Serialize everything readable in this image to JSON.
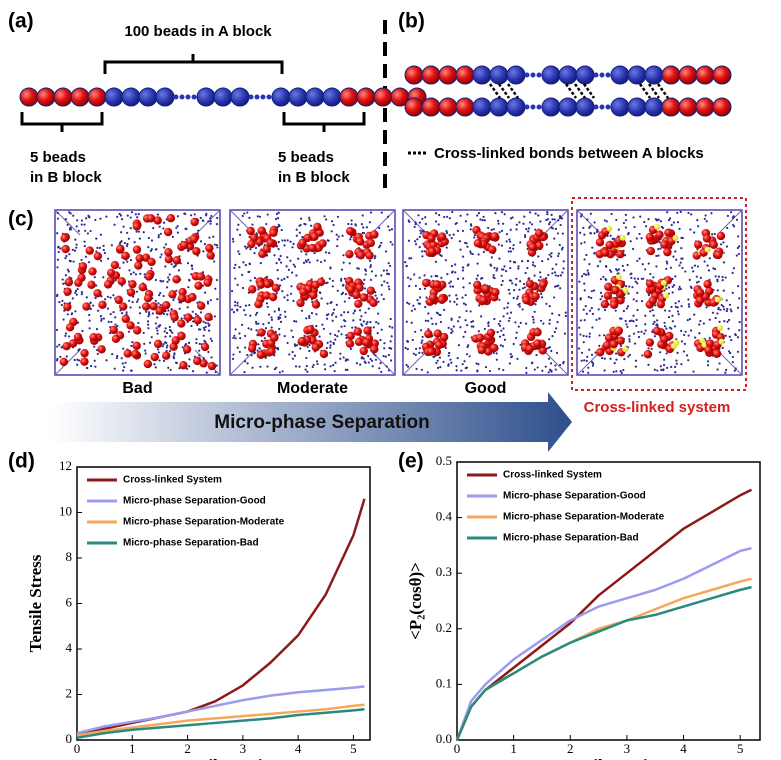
{
  "panels": {
    "a": "(a)",
    "b": "(b)",
    "c": "(c)",
    "d": "(d)",
    "e": "(e)"
  },
  "panel_a": {
    "a_block": "100 beads in A block",
    "b_block_left": [
      "5 beads",
      "in B block"
    ],
    "b_block_right": [
      "5 beads",
      "in B block"
    ]
  },
  "panel_b": {
    "legend": "Cross-linked bonds between A blocks"
  },
  "panel_c": {
    "labels": [
      "Bad",
      "Moderate",
      "Good"
    ],
    "arrow": "Micro-phase Separation",
    "crosslinked": "Cross-linked system"
  },
  "chart_data": [
    {
      "type": "line",
      "xlabel": "Tensile strain",
      "ylabel": "Tensile Stress",
      "x": [
        0,
        0.25,
        0.5,
        1,
        1.5,
        2,
        2.5,
        3,
        3.5,
        4,
        4.5,
        5,
        5.2
      ],
      "xlim": [
        0,
        5.3
      ],
      "xticks": [
        0,
        1,
        2,
        3,
        4,
        5
      ],
      "ylim": [
        0,
        12
      ],
      "yticks": [
        0,
        2,
        4,
        6,
        8,
        10,
        12
      ],
      "grid": false,
      "legend": "upper left",
      "series": [
        {
          "name": "Cross-linked System",
          "color": "#8b1a1a",
          "values": [
            0.2,
            0.35,
            0.5,
            0.75,
            1.0,
            1.25,
            1.7,
            2.4,
            3.4,
            4.6,
            6.4,
            9.0,
            10.6
          ]
        },
        {
          "name": "Micro-phase Separation-Good",
          "color": "#9b9bef",
          "values": [
            0.3,
            0.45,
            0.6,
            0.8,
            1.0,
            1.25,
            1.5,
            1.75,
            1.95,
            2.1,
            2.2,
            2.3,
            2.35
          ]
        },
        {
          "name": "Micro-phase Separation-Moderate",
          "color": "#f5a85a",
          "values": [
            0.2,
            0.3,
            0.4,
            0.55,
            0.7,
            0.85,
            0.95,
            1.05,
            1.15,
            1.25,
            1.35,
            1.5,
            1.55
          ]
        },
        {
          "name": "Micro-phase Separation-Bad",
          "color": "#2a8a80",
          "values": [
            0.1,
            0.2,
            0.3,
            0.45,
            0.55,
            0.65,
            0.75,
            0.85,
            0.95,
            1.1,
            1.2,
            1.3,
            1.35
          ]
        }
      ]
    },
    {
      "type": "line",
      "xlabel": "Tensile strain",
      "ylabel": "<P₂(cosθ)>",
      "x": [
        0,
        0.25,
        0.5,
        1,
        1.5,
        2,
        2.5,
        3,
        3.5,
        4,
        4.5,
        5,
        5.2
      ],
      "xlim": [
        0,
        5.35
      ],
      "xticks": [
        0,
        1,
        2,
        3,
        4,
        5
      ],
      "ylim": [
        0,
        0.5
      ],
      "yticks": [
        {
          "value": 0,
          "label": "0.0"
        },
        0.1,
        0.2,
        0.3,
        0.4,
        0.5
      ],
      "grid": false,
      "legend": "upper left",
      "series": [
        {
          "name": "Cross-linked System",
          "color": "#8b1a1a",
          "values": [
            0,
            0.06,
            0.09,
            0.13,
            0.17,
            0.21,
            0.26,
            0.3,
            0.34,
            0.38,
            0.41,
            0.44,
            0.45
          ]
        },
        {
          "name": "Micro-phase Separation-Good",
          "color": "#9b9bef",
          "values": [
            0,
            0.07,
            0.1,
            0.145,
            0.18,
            0.215,
            0.24,
            0.255,
            0.27,
            0.29,
            0.315,
            0.34,
            0.345
          ]
        },
        {
          "name": "Micro-phase Separation-Moderate",
          "color": "#f5a85a",
          "values": [
            0,
            0.06,
            0.09,
            0.12,
            0.15,
            0.175,
            0.2,
            0.215,
            0.235,
            0.255,
            0.27,
            0.285,
            0.29
          ]
        },
        {
          "name": "Micro-phase Separation-Bad",
          "color": "#2a8a80",
          "values": [
            0,
            0.06,
            0.09,
            0.12,
            0.15,
            0.175,
            0.195,
            0.215,
            0.225,
            0.24,
            0.255,
            0.27,
            0.275
          ]
        }
      ]
    }
  ]
}
